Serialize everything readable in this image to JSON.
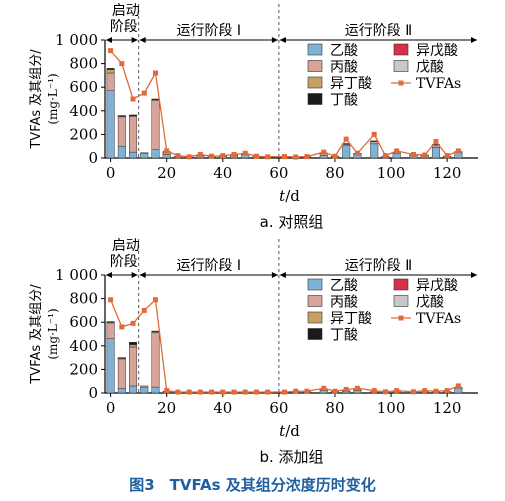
{
  "figure_caption": "图3　TVFAs 及其组分浓度历时变化",
  "colors": {
    "acetic": "#7fb3d5",
    "propionic": "#d9a39a",
    "isobutyric": "#c8a063",
    "butyric": "#1a1a1a",
    "isovaleric": "#d9304a",
    "valeric": "#c8c8c8",
    "tvfa_line": "#e06a3a",
    "caption": "#1f5fa0"
  },
  "chart_data": [
    {
      "type": "bar",
      "caption": "a. 对照组",
      "ylabel_line1": "TVFAs 及其组分/",
      "ylabel_line2": "(mg·L⁻¹)",
      "xlabel": "t/d",
      "xlim": [
        -2,
        131
      ],
      "ylim": [
        0,
        1000
      ],
      "xticks": [
        0,
        20,
        40,
        60,
        80,
        100,
        120
      ],
      "yticks": [
        0,
        200,
        400,
        600,
        800,
        1000
      ],
      "ytick_labels": [
        "0",
        "200",
        "400",
        "600",
        "800",
        "1 000"
      ],
      "phase_lines": [
        10,
        60
      ],
      "phases": [
        {
          "label_line1": "启动",
          "label_line2": "阶段",
          "from": -2,
          "to": 10
        },
        {
          "label_line1": "运行阶段 Ⅰ",
          "label_line2": "",
          "from": 10,
          "to": 60
        },
        {
          "label_line1": "运行阶段 Ⅱ",
          "label_line2": "",
          "from": 60,
          "to": 131
        }
      ],
      "legend": [
        {
          "key": "acetic",
          "label": "乙酸"
        },
        {
          "key": "isovaleric",
          "label": "异戊酸"
        },
        {
          "key": "propionic",
          "label": "丙酸"
        },
        {
          "key": "valeric",
          "label": "戊酸"
        },
        {
          "key": "isobutyric",
          "label": "异丁酸"
        },
        {
          "key": "tvfa",
          "label": "TVFAs"
        },
        {
          "key": "butyric",
          "label": "丁酸"
        }
      ],
      "bars": [
        {
          "x": 0,
          "acetic": 570,
          "propionic": 150,
          "isobutyric": 30,
          "butyric": 10
        },
        {
          "x": 4,
          "acetic": 100,
          "propionic": 250,
          "isobutyric": 5,
          "butyric": 5
        },
        {
          "x": 8,
          "acetic": 50,
          "propionic": 300,
          "isobutyric": 10,
          "butyric": 5
        },
        {
          "x": 12,
          "acetic": 40,
          "propionic": 5
        },
        {
          "x": 16,
          "acetic": 70,
          "propionic": 420,
          "isobutyric": 5,
          "butyric": 5
        },
        {
          "x": 20,
          "acetic": 30,
          "propionic": 20,
          "butyric": 5
        },
        {
          "x": 24,
          "acetic": 10,
          "propionic": 5
        },
        {
          "x": 28,
          "acetic": 8,
          "propionic": 2
        },
        {
          "x": 32,
          "acetic": 20,
          "propionic": 5
        },
        {
          "x": 36,
          "acetic": 10,
          "propionic": 2
        },
        {
          "x": 40,
          "acetic": 15,
          "propionic": 3
        },
        {
          "x": 44,
          "acetic": 25,
          "propionic": 5
        },
        {
          "x": 48,
          "acetic": 30,
          "propionic": 5
        },
        {
          "x": 52,
          "acetic": 10,
          "propionic": 2
        },
        {
          "x": 56,
          "acetic": 8,
          "propionic": 2
        },
        {
          "x": 62,
          "acetic": 8,
          "propionic": 2
        },
        {
          "x": 66,
          "acetic": 5,
          "propionic": 2
        },
        {
          "x": 70,
          "acetic": 10,
          "propionic": 2
        },
        {
          "x": 76,
          "acetic": 20,
          "propionic": 20,
          "butyric": 3
        },
        {
          "x": 80,
          "acetic": 10,
          "propionic": 5
        },
        {
          "x": 84,
          "acetic": 110,
          "propionic": 10,
          "butyric": 3
        },
        {
          "x": 88,
          "acetic": 35,
          "propionic": 5
        },
        {
          "x": 94,
          "acetic": 120,
          "propionic": 20,
          "butyric": 5
        },
        {
          "x": 98,
          "acetic": 10,
          "propionic": 5
        },
        {
          "x": 102,
          "acetic": 40,
          "propionic": 5
        },
        {
          "x": 108,
          "acetic": 25,
          "propionic": 5
        },
        {
          "x": 112,
          "acetic": 20,
          "propionic": 5
        },
        {
          "x": 116,
          "acetic": 90,
          "propionic": 20,
          "butyric": 5
        },
        {
          "x": 120,
          "acetic": 10,
          "propionic": 5
        },
        {
          "x": 124,
          "acetic": 50,
          "propionic": 5
        }
      ],
      "tvfa": [
        {
          "x": 0,
          "y": 910
        },
        {
          "x": 4,
          "y": 800
        },
        {
          "x": 8,
          "y": 500
        },
        {
          "x": 12,
          "y": 550
        },
        {
          "x": 16,
          "y": 720
        },
        {
          "x": 20,
          "y": 60
        },
        {
          "x": 24,
          "y": 20
        },
        {
          "x": 28,
          "y": 10
        },
        {
          "x": 32,
          "y": 30
        },
        {
          "x": 36,
          "y": 15
        },
        {
          "x": 40,
          "y": 20
        },
        {
          "x": 44,
          "y": 30
        },
        {
          "x": 48,
          "y": 40
        },
        {
          "x": 52,
          "y": 15
        },
        {
          "x": 56,
          "y": 10
        },
        {
          "x": 62,
          "y": 12
        },
        {
          "x": 66,
          "y": 8
        },
        {
          "x": 70,
          "y": 12
        },
        {
          "x": 76,
          "y": 50
        },
        {
          "x": 80,
          "y": 15
        },
        {
          "x": 84,
          "y": 160
        },
        {
          "x": 88,
          "y": 40
        },
        {
          "x": 94,
          "y": 200
        },
        {
          "x": 98,
          "y": 20
        },
        {
          "x": 102,
          "y": 60
        },
        {
          "x": 108,
          "y": 30
        },
        {
          "x": 112,
          "y": 25
        },
        {
          "x": 116,
          "y": 140
        },
        {
          "x": 120,
          "y": 20
        },
        {
          "x": 124,
          "y": 60
        }
      ]
    },
    {
      "type": "bar",
      "caption": "b. 添加组",
      "ylabel_line1": "TVFAs 及其组分/",
      "ylabel_line2": "(mg·L⁻¹)",
      "xlabel": "t/d",
      "xlim": [
        -2,
        131
      ],
      "ylim": [
        0,
        1000
      ],
      "xticks": [
        0,
        20,
        40,
        60,
        80,
        100,
        120
      ],
      "yticks": [
        0,
        200,
        400,
        600,
        800,
        1000
      ],
      "ytick_labels": [
        "0",
        "200",
        "400",
        "600",
        "800",
        "1 000"
      ],
      "phase_lines": [
        10,
        60
      ],
      "phases": [
        {
          "label_line1": "启动",
          "label_line2": "阶段",
          "from": -2,
          "to": 10
        },
        {
          "label_line1": "运行阶段 Ⅰ",
          "label_line2": "",
          "from": 10,
          "to": 60
        },
        {
          "label_line1": "运行阶段 Ⅱ",
          "label_line2": "",
          "from": 60,
          "to": 131
        }
      ],
      "legend": [
        {
          "key": "acetic",
          "label": "乙酸"
        },
        {
          "key": "isovaleric",
          "label": "异戊酸"
        },
        {
          "key": "propionic",
          "label": "丙酸"
        },
        {
          "key": "valeric",
          "label": "戊酸"
        },
        {
          "key": "isobutyric",
          "label": "异丁酸"
        },
        {
          "key": "tvfa",
          "label": "TVFAs"
        },
        {
          "key": "butyric",
          "label": "丁酸"
        }
      ],
      "bars": [
        {
          "x": 0,
          "acetic": 460,
          "propionic": 135,
          "isobutyric": 5,
          "butyric": 5
        },
        {
          "x": 4,
          "acetic": 40,
          "propionic": 250,
          "isobutyric": 5,
          "butyric": 5
        },
        {
          "x": 8,
          "acetic": 60,
          "propionic": 330,
          "isobutyric": 20,
          "butyric": 20
        },
        {
          "x": 12,
          "acetic": 50,
          "propionic": 10
        },
        {
          "x": 16,
          "acetic": 50,
          "propionic": 460,
          "isobutyric": 10,
          "butyric": 5
        },
        {
          "x": 20,
          "acetic": 10,
          "propionic": 5
        },
        {
          "x": 24,
          "acetic": 5,
          "propionic": 2
        },
        {
          "x": 28,
          "acetic": 5,
          "propionic": 2
        },
        {
          "x": 32,
          "acetic": 5,
          "propionic": 2
        },
        {
          "x": 36,
          "acetic": 5,
          "propionic": 2
        },
        {
          "x": 40,
          "acetic": 5,
          "propionic": 2
        },
        {
          "x": 44,
          "acetic": 5,
          "propionic": 2
        },
        {
          "x": 48,
          "acetic": 5,
          "propionic": 2
        },
        {
          "x": 52,
          "acetic": 5,
          "propionic": 2
        },
        {
          "x": 56,
          "acetic": 5,
          "propionic": 2
        },
        {
          "x": 62,
          "acetic": 5,
          "propionic": 2
        },
        {
          "x": 66,
          "acetic": 8,
          "propionic": 2
        },
        {
          "x": 70,
          "acetic": 10,
          "propionic": 3
        },
        {
          "x": 76,
          "acetic": 20,
          "propionic": 10
        },
        {
          "x": 80,
          "acetic": 10,
          "propionic": 3
        },
        {
          "x": 84,
          "acetic": 15,
          "propionic": 5
        },
        {
          "x": 88,
          "acetic": 20,
          "propionic": 10
        },
        {
          "x": 94,
          "acetic": 10,
          "propionic": 3
        },
        {
          "x": 98,
          "acetic": 8,
          "propionic": 2
        },
        {
          "x": 102,
          "acetic": 10,
          "propionic": 3
        },
        {
          "x": 108,
          "acetic": 8,
          "propionic": 2
        },
        {
          "x": 112,
          "acetic": 10,
          "propionic": 3
        },
        {
          "x": 116,
          "acetic": 8,
          "propionic": 2
        },
        {
          "x": 120,
          "acetic": 10,
          "propionic": 3
        },
        {
          "x": 124,
          "acetic": 40,
          "propionic": 10
        }
      ],
      "tvfa": [
        {
          "x": 0,
          "y": 790
        },
        {
          "x": 4,
          "y": 560
        },
        {
          "x": 8,
          "y": 590
        },
        {
          "x": 12,
          "y": 700
        },
        {
          "x": 16,
          "y": 790
        },
        {
          "x": 20,
          "y": 20
        },
        {
          "x": 24,
          "y": 8
        },
        {
          "x": 28,
          "y": 8
        },
        {
          "x": 32,
          "y": 8
        },
        {
          "x": 36,
          "y": 8
        },
        {
          "x": 40,
          "y": 8
        },
        {
          "x": 44,
          "y": 8
        },
        {
          "x": 48,
          "y": 8
        },
        {
          "x": 52,
          "y": 8
        },
        {
          "x": 56,
          "y": 8
        },
        {
          "x": 62,
          "y": 8
        },
        {
          "x": 66,
          "y": 15
        },
        {
          "x": 70,
          "y": 15
        },
        {
          "x": 76,
          "y": 40
        },
        {
          "x": 80,
          "y": 15
        },
        {
          "x": 84,
          "y": 30
        },
        {
          "x": 88,
          "y": 40
        },
        {
          "x": 94,
          "y": 20
        },
        {
          "x": 98,
          "y": 10
        },
        {
          "x": 102,
          "y": 20
        },
        {
          "x": 108,
          "y": 10
        },
        {
          "x": 112,
          "y": 20
        },
        {
          "x": 116,
          "y": 15
        },
        {
          "x": 120,
          "y": 20
        },
        {
          "x": 124,
          "y": 60
        }
      ]
    }
  ]
}
